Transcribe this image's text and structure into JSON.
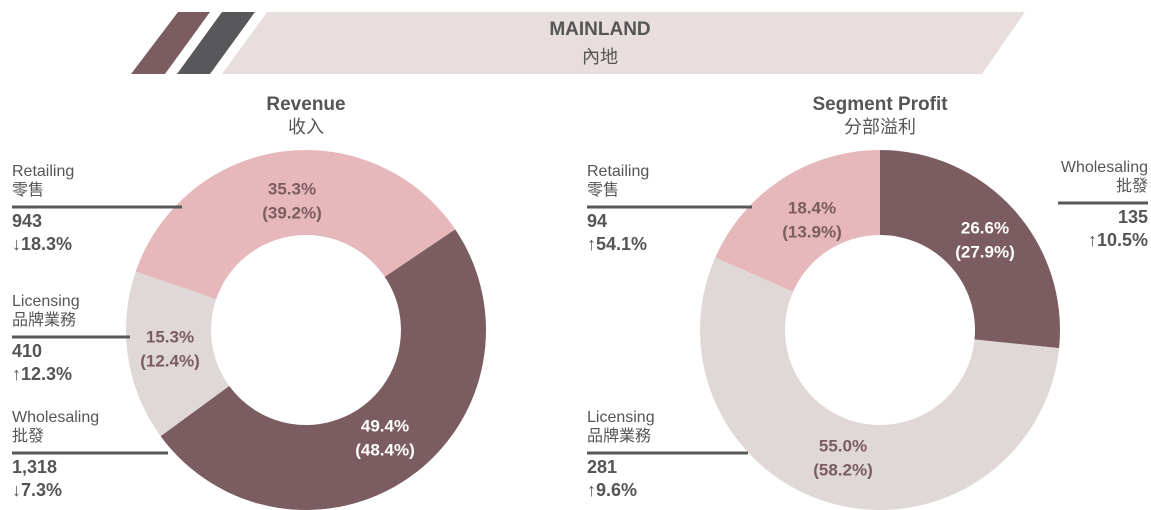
{
  "header": {
    "title": "MAINLAND",
    "subtitle": "內地"
  },
  "chart_data": [
    {
      "type": "donut",
      "title": "Revenue",
      "subtitle": "收入",
      "categories": [
        "Retailing",
        "Licensing",
        "Wholesaling"
      ],
      "categories_zh": [
        "零售",
        "品牌業務",
        "批發"
      ],
      "values": [
        35.3,
        15.3,
        49.4
      ],
      "value_labels": [
        "35.3%",
        "15.3%",
        "49.4%"
      ],
      "prior_values": [
        39.2,
        12.4,
        48.4
      ],
      "prior_labels": [
        "(39.2%)",
        "(12.4%)",
        "(48.4%)"
      ],
      "amounts": [
        "943",
        "410",
        "1,318"
      ],
      "changes": [
        "↓18.3%",
        "↑12.3%",
        "↓7.3%"
      ],
      "colors": [
        "#e6b8bb",
        "#e0d8d6",
        "#7b5c60"
      ],
      "label_colors": [
        "#7b5c60",
        "#7b5c60",
        "#ffffff"
      ]
    },
    {
      "type": "donut",
      "title": "Segment Profit",
      "subtitle": "分部溢利",
      "categories": [
        "Wholesaling",
        "Licensing",
        "Retailing"
      ],
      "categories_zh": [
        "批發",
        "品牌業務",
        "零售"
      ],
      "values": [
        26.6,
        55.0,
        18.4
      ],
      "value_labels": [
        "26.6%",
        "55.0%",
        "18.4%"
      ],
      "prior_values": [
        27.9,
        58.2,
        13.9
      ],
      "prior_labels": [
        "(27.9%)",
        "(58.2%)",
        "(13.9%)"
      ],
      "amounts": [
        "135",
        "281",
        "94"
      ],
      "changes": [
        "↑10.5%",
        "↑9.6%",
        "↑54.1%"
      ],
      "colors": [
        "#7b5c60",
        "#e0d8d6",
        "#e6b8bb"
      ],
      "label_colors": [
        "#ffffff",
        "#7b5c60",
        "#7b5c60"
      ]
    }
  ]
}
